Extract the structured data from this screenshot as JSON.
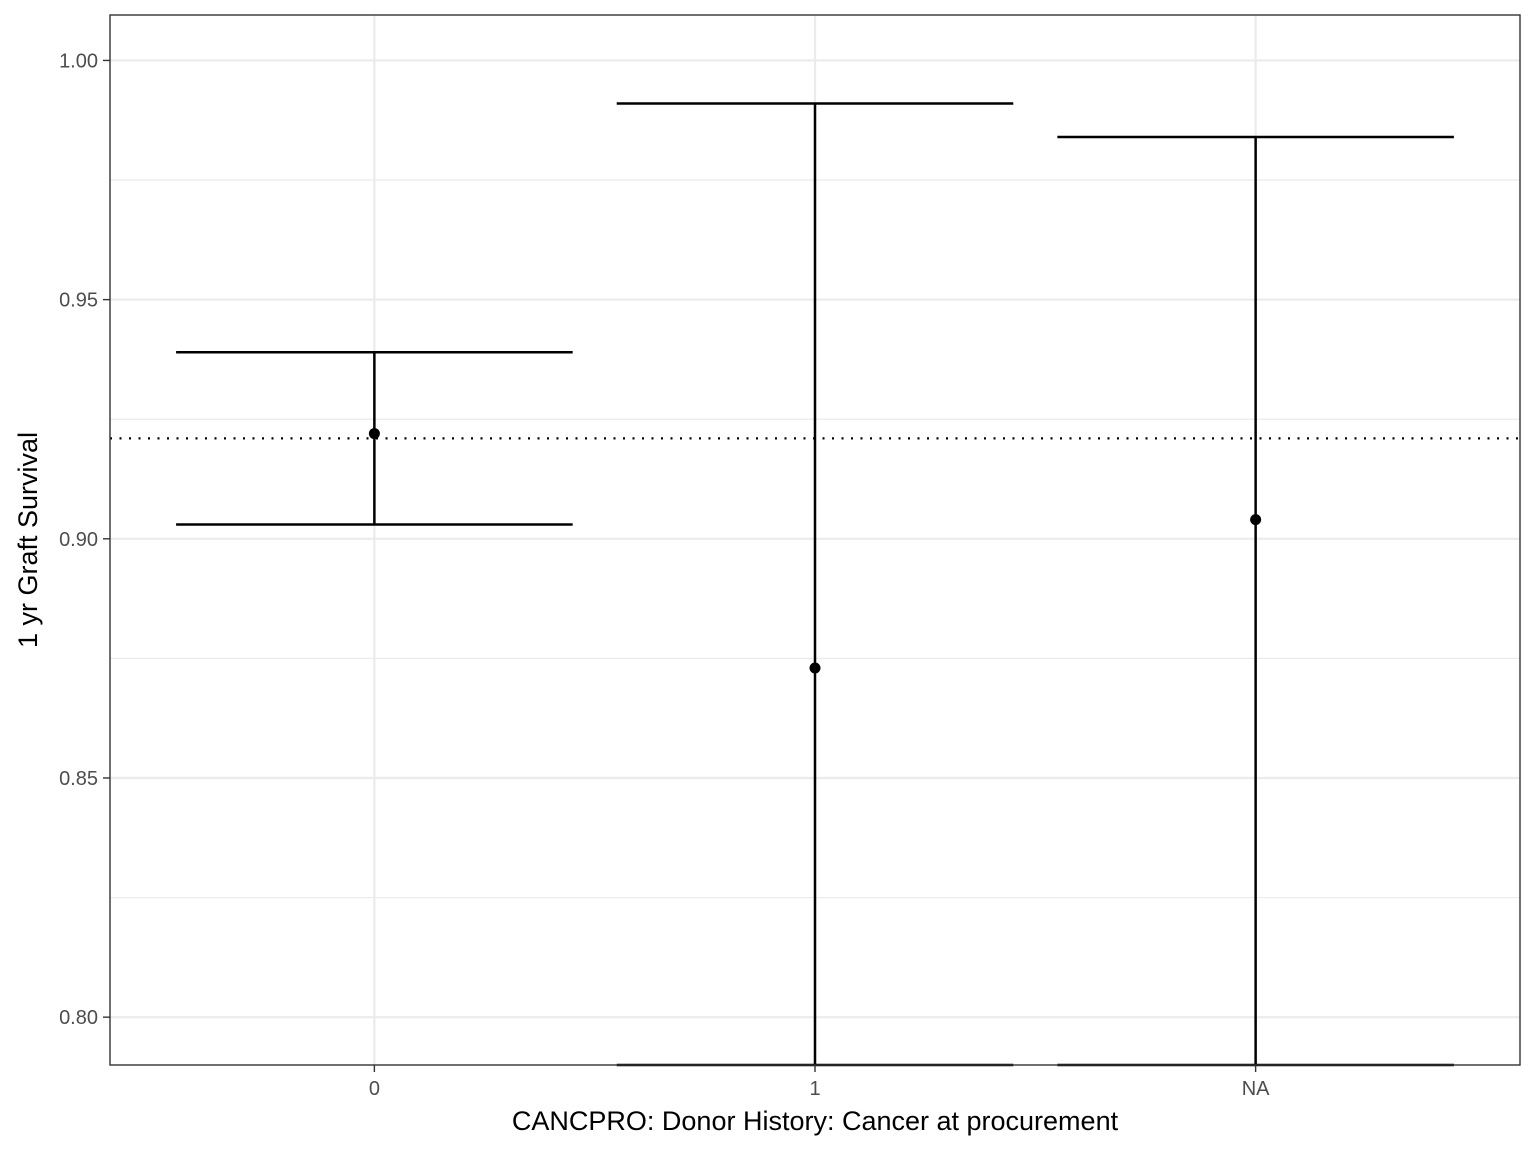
{
  "chart_data": {
    "type": "errorbar",
    "title": "",
    "xlabel": "CANCPRO: Donor History: Cancer at procurement",
    "ylabel": "1 yr Graft Survival",
    "categories": [
      "0",
      "1",
      "NA"
    ],
    "series": [
      {
        "points": [
          {
            "x": "0",
            "estimate": 0.922,
            "lower": 0.903,
            "upper": 0.939
          },
          {
            "x": "1",
            "estimate": 0.873,
            "lower": 0.79,
            "upper": 0.991
          },
          {
            "x": "NA",
            "estimate": 0.904,
            "lower": 0.79,
            "upper": 0.984
          }
        ]
      }
    ],
    "reference_line": {
      "y": 0.921,
      "style": "dotted"
    },
    "ylim": [
      0.79,
      1.0095
    ],
    "yticks": [
      0.8,
      0.85,
      0.9,
      0.95,
      1.0
    ],
    "ytick_labels": [
      "0.80",
      "0.85",
      "0.90",
      "0.95",
      "1.00"
    ],
    "grid": true,
    "legend": "none",
    "colors": {
      "mark": "#000000",
      "grid": "#ebebeb",
      "panel_border": "#333333",
      "tick_text": "#4d4d4d"
    }
  }
}
